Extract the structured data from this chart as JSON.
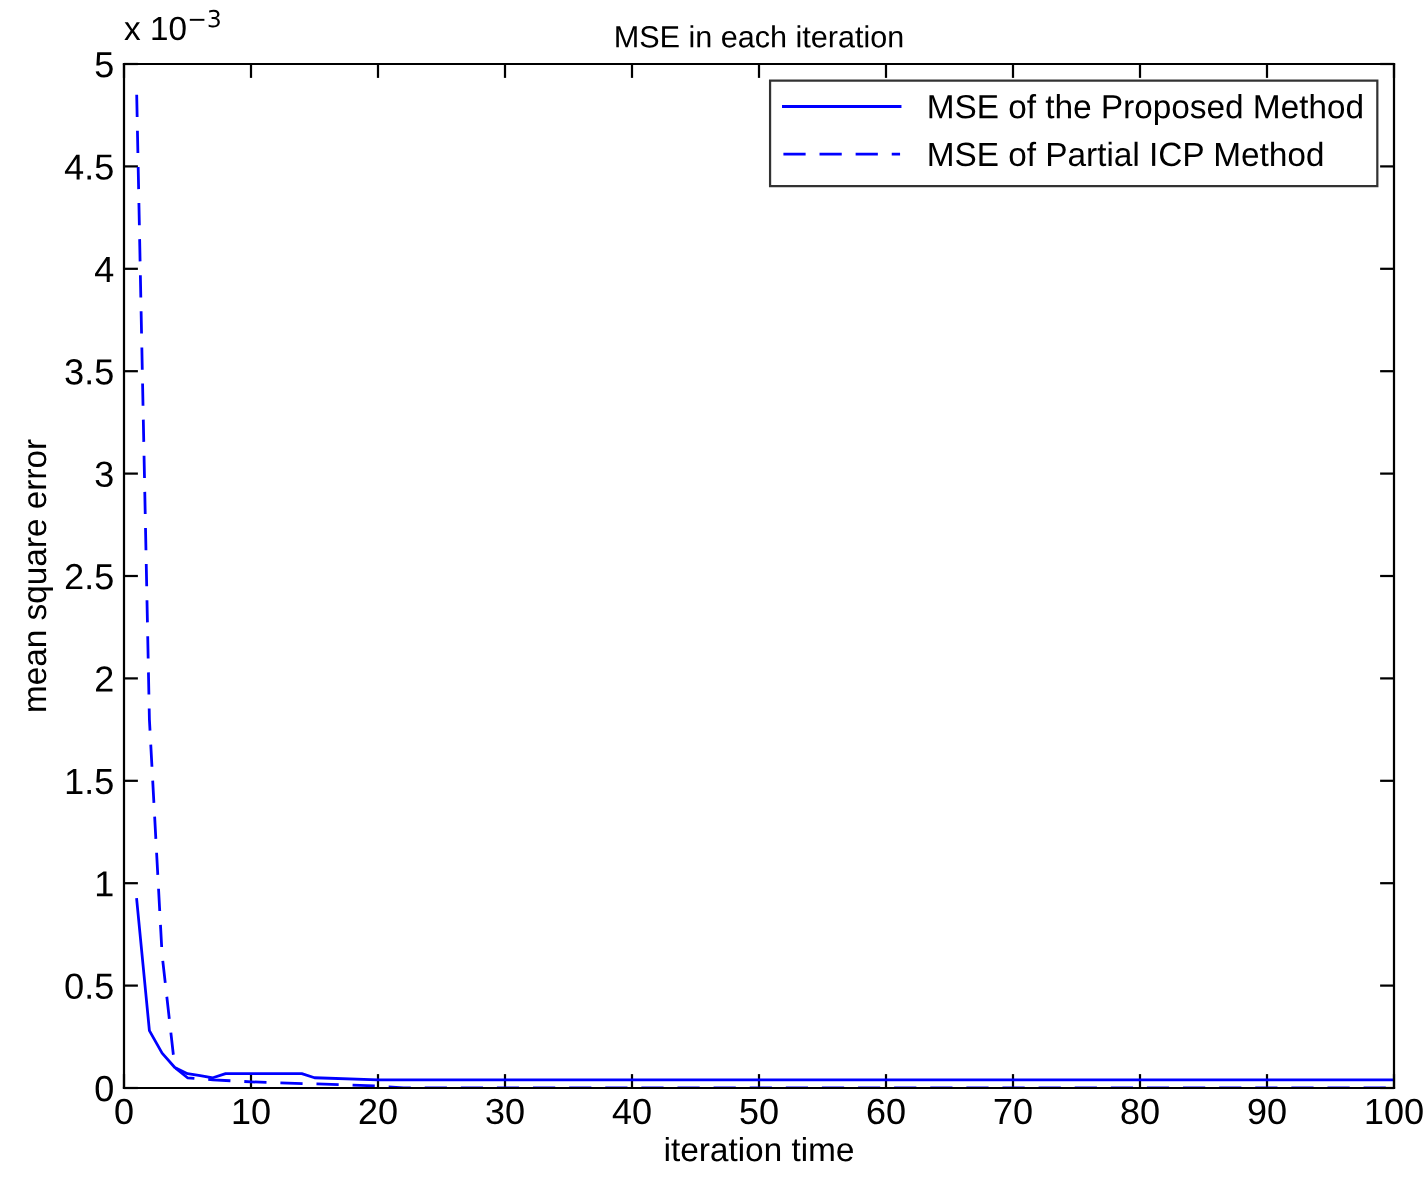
{
  "chart_data": {
    "type": "line",
    "title": "MSE in each iteration",
    "xlabel": "iteration time",
    "ylabel": "mean square error",
    "annotations": [
      "x 10$^{−3}$"
    ],
    "xlim": [
      0,
      100
    ],
    "xticks": [
      0,
      10,
      20,
      30,
      40,
      50,
      60,
      70,
      80,
      90,
      100
    ],
    "ylim": [
      0,
      5
    ],
    "yticks": [
      0,
      0.5,
      1,
      1.5,
      2,
      2.5,
      3,
      3.5,
      4,
      4.5,
      5
    ],
    "grid": false,
    "legend": "top right",
    "marker": "none",
    "series": [
      {
        "name": "MSE of the Proposed Method",
        "color": "#0000ff",
        "line_style": "solid",
        "x": [
          1,
          2,
          3,
          4,
          5,
          6,
          7,
          8,
          10,
          14,
          15,
          20,
          100
        ],
        "values": [
          0.92,
          0.28,
          0.17,
          0.1,
          0.07,
          0.06,
          0.05,
          0.07,
          0.07,
          0.07,
          0.05,
          0.04,
          0.04
        ]
      },
      {
        "name": "MSE of Partial ICP Method",
        "color": "#0000ff",
        "line_style": "dashed",
        "x": [
          1,
          2,
          3,
          4,
          5,
          7,
          10,
          20,
          22,
          100
        ],
        "values": [
          4.85,
          1.8,
          0.65,
          0.1,
          0.05,
          0.04,
          0.03,
          0.01,
          0.0,
          0.0
        ]
      }
    ]
  }
}
